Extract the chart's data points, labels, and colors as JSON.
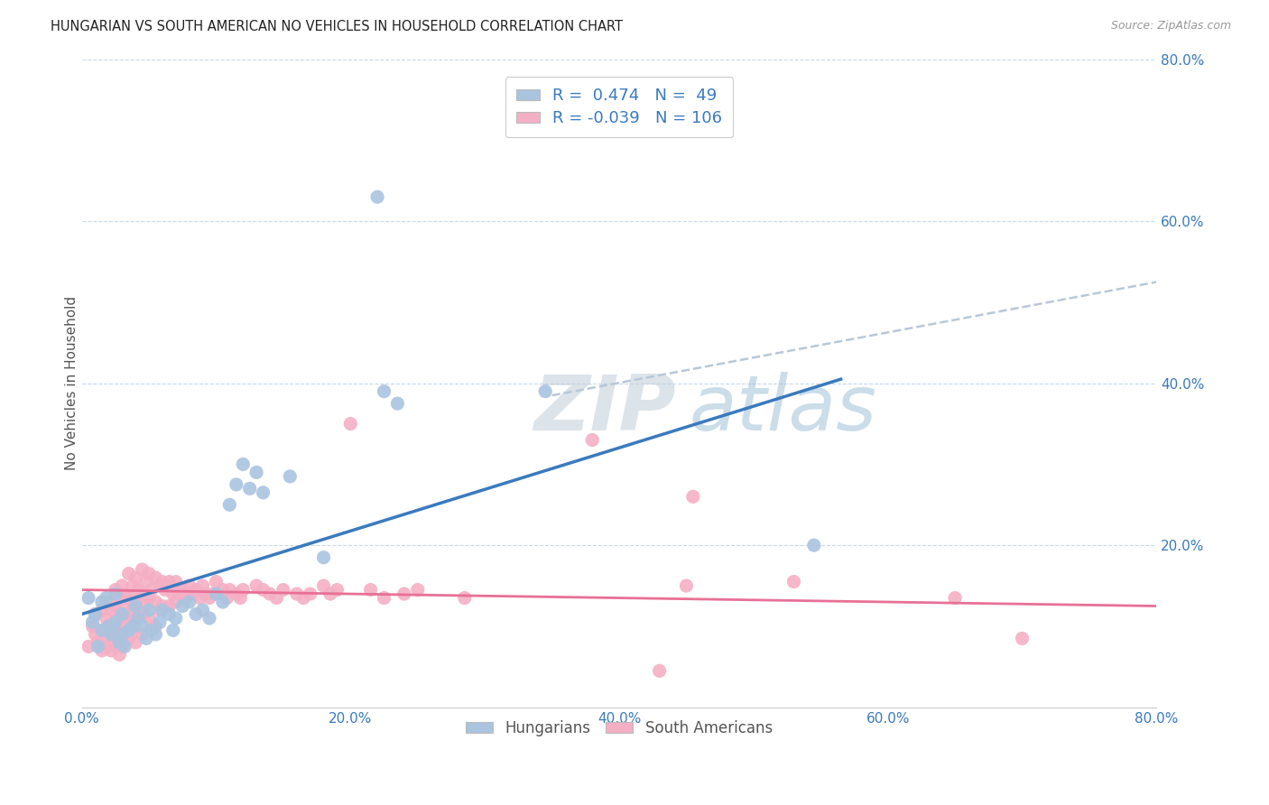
{
  "title": "HUNGARIAN VS SOUTH AMERICAN NO VEHICLES IN HOUSEHOLD CORRELATION CHART",
  "source": "Source: ZipAtlas.com",
  "ylabel": "No Vehicles in Household",
  "xlim": [
    0.0,
    0.8
  ],
  "ylim": [
    0.0,
    0.8
  ],
  "xtick_labels": [
    "0.0%",
    "20.0%",
    "40.0%",
    "60.0%",
    "80.0%"
  ],
  "xtick_vals": [
    0.0,
    0.2,
    0.4,
    0.6,
    0.8
  ],
  "ytick_labels": [
    "20.0%",
    "40.0%",
    "60.0%",
    "80.0%"
  ],
  "ytick_vals": [
    0.2,
    0.4,
    0.6,
    0.8
  ],
  "hungarian_color": "#aac4e0",
  "south_american_color": "#f4afc4",
  "hungarian_line_color": "#3a7abf",
  "south_american_line_color": "#e87096",
  "trend_line_color": "#b8c8d8",
  "watermark_top": "ZIP",
  "watermark_bot": "atlas",
  "hungarian_R": 0.474,
  "hungarian_N": 49,
  "south_american_R": -0.039,
  "south_american_N": 106,
  "hun_line_x0": 0.0,
  "hun_line_y0": 0.115,
  "hun_line_x1": 0.565,
  "hun_line_y1": 0.405,
  "sa_line_x0": 0.0,
  "sa_line_y0": 0.145,
  "sa_line_x1": 0.8,
  "sa_line_y1": 0.125,
  "dash_line_x0": 0.35,
  "dash_line_y0": 0.385,
  "dash_line_x1": 0.8,
  "dash_line_y1": 0.525,
  "hungarian_points": [
    [
      0.005,
      0.135
    ],
    [
      0.008,
      0.105
    ],
    [
      0.01,
      0.115
    ],
    [
      0.012,
      0.075
    ],
    [
      0.015,
      0.095
    ],
    [
      0.015,
      0.13
    ],
    [
      0.018,
      0.135
    ],
    [
      0.02,
      0.1
    ],
    [
      0.022,
      0.09
    ],
    [
      0.025,
      0.14
    ],
    [
      0.025,
      0.105
    ],
    [
      0.028,
      0.08
    ],
    [
      0.03,
      0.115
    ],
    [
      0.03,
      0.09
    ],
    [
      0.032,
      0.075
    ],
    [
      0.035,
      0.095
    ],
    [
      0.038,
      0.1
    ],
    [
      0.04,
      0.125
    ],
    [
      0.042,
      0.11
    ],
    [
      0.045,
      0.1
    ],
    [
      0.048,
      0.085
    ],
    [
      0.05,
      0.12
    ],
    [
      0.052,
      0.095
    ],
    [
      0.055,
      0.09
    ],
    [
      0.058,
      0.105
    ],
    [
      0.06,
      0.12
    ],
    [
      0.065,
      0.115
    ],
    [
      0.068,
      0.095
    ],
    [
      0.07,
      0.11
    ],
    [
      0.075,
      0.125
    ],
    [
      0.08,
      0.13
    ],
    [
      0.085,
      0.115
    ],
    [
      0.09,
      0.12
    ],
    [
      0.095,
      0.11
    ],
    [
      0.1,
      0.14
    ],
    [
      0.105,
      0.13
    ],
    [
      0.11,
      0.25
    ],
    [
      0.115,
      0.275
    ],
    [
      0.12,
      0.3
    ],
    [
      0.125,
      0.27
    ],
    [
      0.13,
      0.29
    ],
    [
      0.135,
      0.265
    ],
    [
      0.155,
      0.285
    ],
    [
      0.18,
      0.185
    ],
    [
      0.225,
      0.39
    ],
    [
      0.235,
      0.375
    ],
    [
      0.345,
      0.39
    ],
    [
      0.545,
      0.2
    ],
    [
      0.22,
      0.63
    ]
  ],
  "south_american_points": [
    [
      0.005,
      0.075
    ],
    [
      0.008,
      0.1
    ],
    [
      0.01,
      0.09
    ],
    [
      0.01,
      0.115
    ],
    [
      0.012,
      0.08
    ],
    [
      0.015,
      0.12
    ],
    [
      0.015,
      0.095
    ],
    [
      0.015,
      0.07
    ],
    [
      0.018,
      0.11
    ],
    [
      0.018,
      0.085
    ],
    [
      0.02,
      0.13
    ],
    [
      0.02,
      0.1
    ],
    [
      0.02,
      0.075
    ],
    [
      0.022,
      0.12
    ],
    [
      0.022,
      0.095
    ],
    [
      0.022,
      0.07
    ],
    [
      0.025,
      0.145
    ],
    [
      0.025,
      0.125
    ],
    [
      0.025,
      0.1
    ],
    [
      0.025,
      0.08
    ],
    [
      0.028,
      0.135
    ],
    [
      0.028,
      0.11
    ],
    [
      0.028,
      0.085
    ],
    [
      0.028,
      0.065
    ],
    [
      0.03,
      0.15
    ],
    [
      0.03,
      0.125
    ],
    [
      0.03,
      0.1
    ],
    [
      0.03,
      0.075
    ],
    [
      0.032,
      0.14
    ],
    [
      0.032,
      0.115
    ],
    [
      0.032,
      0.09
    ],
    [
      0.035,
      0.165
    ],
    [
      0.035,
      0.135
    ],
    [
      0.035,
      0.11
    ],
    [
      0.035,
      0.085
    ],
    [
      0.038,
      0.15
    ],
    [
      0.038,
      0.12
    ],
    [
      0.038,
      0.095
    ],
    [
      0.04,
      0.16
    ],
    [
      0.04,
      0.13
    ],
    [
      0.04,
      0.105
    ],
    [
      0.04,
      0.08
    ],
    [
      0.042,
      0.145
    ],
    [
      0.042,
      0.115
    ],
    [
      0.045,
      0.17
    ],
    [
      0.045,
      0.14
    ],
    [
      0.045,
      0.115
    ],
    [
      0.045,
      0.09
    ],
    [
      0.048,
      0.155
    ],
    [
      0.048,
      0.125
    ],
    [
      0.05,
      0.165
    ],
    [
      0.05,
      0.135
    ],
    [
      0.05,
      0.11
    ],
    [
      0.052,
      0.145
    ],
    [
      0.055,
      0.16
    ],
    [
      0.055,
      0.13
    ],
    [
      0.055,
      0.1
    ],
    [
      0.058,
      0.15
    ],
    [
      0.058,
      0.12
    ],
    [
      0.06,
      0.155
    ],
    [
      0.06,
      0.125
    ],
    [
      0.062,
      0.145
    ],
    [
      0.065,
      0.155
    ],
    [
      0.065,
      0.125
    ],
    [
      0.068,
      0.14
    ],
    [
      0.07,
      0.155
    ],
    [
      0.07,
      0.13
    ],
    [
      0.072,
      0.14
    ],
    [
      0.075,
      0.145
    ],
    [
      0.078,
      0.135
    ],
    [
      0.08,
      0.15
    ],
    [
      0.082,
      0.14
    ],
    [
      0.085,
      0.145
    ],
    [
      0.088,
      0.135
    ],
    [
      0.09,
      0.15
    ],
    [
      0.092,
      0.14
    ],
    [
      0.095,
      0.135
    ],
    [
      0.098,
      0.14
    ],
    [
      0.1,
      0.155
    ],
    [
      0.105,
      0.145
    ],
    [
      0.108,
      0.135
    ],
    [
      0.11,
      0.145
    ],
    [
      0.115,
      0.14
    ],
    [
      0.118,
      0.135
    ],
    [
      0.12,
      0.145
    ],
    [
      0.13,
      0.15
    ],
    [
      0.135,
      0.145
    ],
    [
      0.14,
      0.14
    ],
    [
      0.145,
      0.135
    ],
    [
      0.15,
      0.145
    ],
    [
      0.16,
      0.14
    ],
    [
      0.165,
      0.135
    ],
    [
      0.17,
      0.14
    ],
    [
      0.18,
      0.15
    ],
    [
      0.185,
      0.14
    ],
    [
      0.19,
      0.145
    ],
    [
      0.2,
      0.35
    ],
    [
      0.215,
      0.145
    ],
    [
      0.225,
      0.135
    ],
    [
      0.24,
      0.14
    ],
    [
      0.25,
      0.145
    ],
    [
      0.285,
      0.135
    ],
    [
      0.38,
      0.33
    ],
    [
      0.43,
      0.045
    ],
    [
      0.45,
      0.15
    ],
    [
      0.455,
      0.26
    ],
    [
      0.53,
      0.155
    ],
    [
      0.65,
      0.135
    ],
    [
      0.7,
      0.085
    ]
  ]
}
